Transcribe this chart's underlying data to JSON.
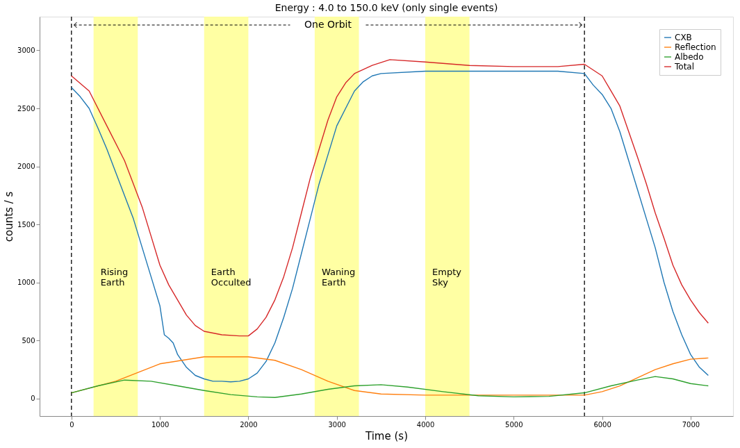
{
  "chart_data": {
    "type": "line",
    "title": "Energy : 4.0 to 150.0 keV (only single events)",
    "xlabel": "Time (s)",
    "ylabel": "counts / s",
    "xlim": [
      -360,
      7480
    ],
    "xticks": [
      0,
      1000,
      2000,
      3000,
      4000,
      5000,
      6000,
      7000
    ],
    "ylim": [
      -150,
      3290
    ],
    "yticks": [
      0,
      500,
      1000,
      1500,
      2000,
      2500,
      3000
    ],
    "grid": false,
    "legend": "top right",
    "line_style": "solid",
    "marker": "none",
    "series": [
      {
        "name": "CXB",
        "color": "#1f77b4",
        "x": [
          0,
          100,
          200,
          300,
          400,
          500,
          600,
          700,
          800,
          900,
          1000,
          1050,
          1100,
          1150,
          1200,
          1300,
          1400,
          1500,
          1600,
          1700,
          1800,
          1900,
          2000,
          2100,
          2200,
          2300,
          2400,
          2500,
          2600,
          2700,
          2800,
          2900,
          3000,
          3100,
          3200,
          3300,
          3400,
          3500,
          4000,
          4500,
          5000,
          5500,
          5800,
          5900,
          6000,
          6100,
          6200,
          6300,
          6400,
          6500,
          6600,
          6700,
          6800,
          6900,
          7000,
          7100,
          7200
        ],
        "values": [
          2680,
          2600,
          2500,
          2330,
          2150,
          1950,
          1750,
          1550,
          1300,
          1050,
          800,
          550,
          520,
          480,
          380,
          270,
          200,
          170,
          150,
          150,
          145,
          150,
          170,
          220,
          320,
          480,
          700,
          950,
          1250,
          1550,
          1850,
          2100,
          2350,
          2500,
          2650,
          2730,
          2780,
          2800,
          2820,
          2820,
          2820,
          2820,
          2800,
          2700,
          2620,
          2500,
          2300,
          2050,
          1800,
          1550,
          1300,
          1000,
          750,
          550,
          380,
          270,
          200
        ]
      },
      {
        "name": "Reflection",
        "color": "#ff7f0e",
        "x": [
          0,
          500,
          1000,
          1500,
          2000,
          2300,
          2600,
          2900,
          3200,
          3500,
          4000,
          5000,
          5800,
          6000,
          6200,
          6400,
          6600,
          6800,
          7000,
          7200
        ],
        "values": [
          50,
          150,
          300,
          360,
          360,
          330,
          250,
          150,
          70,
          40,
          30,
          30,
          30,
          60,
          110,
          180,
          250,
          300,
          340,
          350
        ]
      },
      {
        "name": "Albedo",
        "color": "#2ca02c",
        "x": [
          0,
          300,
          600,
          900,
          1200,
          1500,
          1800,
          2100,
          2300,
          2600,
          2900,
          3200,
          3500,
          3800,
          4200,
          4600,
          5000,
          5400,
          5800,
          6100,
          6400,
          6600,
          6800,
          7000,
          7200
        ],
        "values": [
          50,
          110,
          160,
          150,
          110,
          70,
          35,
          15,
          10,
          40,
          80,
          110,
          120,
          100,
          60,
          25,
          15,
          20,
          50,
          110,
          160,
          190,
          170,
          130,
          110
        ]
      },
      {
        "name": "Total",
        "color": "#d62728",
        "x": [
          0,
          200,
          400,
          600,
          800,
          900,
          1000,
          1100,
          1200,
          1300,
          1400,
          1500,
          1700,
          1900,
          2000,
          2100,
          2200,
          2300,
          2400,
          2500,
          2600,
          2700,
          2800,
          2900,
          3000,
          3100,
          3200,
          3400,
          3600,
          4000,
          4500,
          5000,
          5500,
          5800,
          6000,
          6100,
          6200,
          6300,
          6400,
          6500,
          6600,
          6700,
          6800,
          6900,
          7000,
          7100,
          7200
        ],
        "values": [
          2780,
          2650,
          2350,
          2050,
          1650,
          1400,
          1150,
          980,
          850,
          720,
          630,
          580,
          550,
          540,
          540,
          600,
          700,
          850,
          1050,
          1300,
          1600,
          1900,
          2150,
          2400,
          2600,
          2720,
          2800,
          2870,
          2920,
          2900,
          2870,
          2860,
          2860,
          2880,
          2780,
          2650,
          2520,
          2300,
          2080,
          1850,
          1600,
          1380,
          1150,
          980,
          850,
          740,
          650
        ]
      }
    ],
    "bands": [
      {
        "axis": "x",
        "from": 250,
        "to": 750,
        "label": "Rising\nEarth",
        "color": "#ffff99"
      },
      {
        "axis": "x",
        "from": 1500,
        "to": 2000,
        "label": "Earth\nOcculted",
        "color": "#ffff99"
      },
      {
        "axis": "x",
        "from": 2750,
        "to": 3250,
        "label": "Waning\nEarth",
        "color": "#ffff99"
      },
      {
        "axis": "x",
        "from": 4000,
        "to": 4500,
        "label": "Empty\nSky",
        "color": "#ffff99"
      }
    ],
    "ref_lines": [
      {
        "axis": "x",
        "value": 0,
        "color": "#000000",
        "line_style": "dashed"
      },
      {
        "axis": "x",
        "value": 5800,
        "color": "#000000",
        "line_style": "dashed"
      }
    ],
    "annotations": [
      "One Orbit"
    ]
  }
}
